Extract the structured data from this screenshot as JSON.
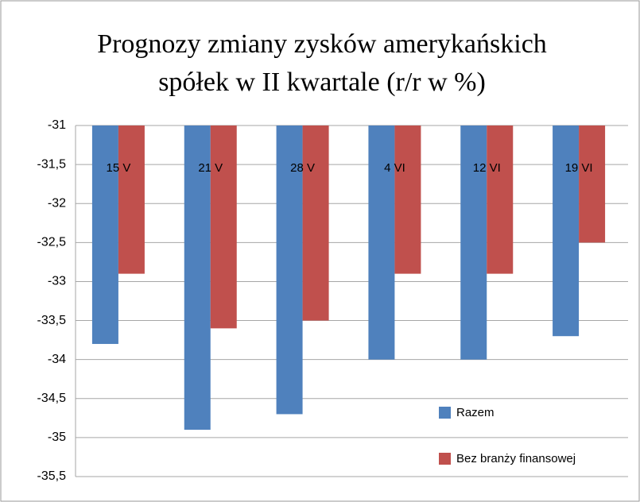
{
  "chart_data": {
    "type": "bar",
    "title": [
      "Prognozy zmiany zysków amerykańskich",
      "spółek w II kwartale (r/r w %)"
    ],
    "categories": [
      "15 V",
      "21 V",
      "28 V",
      "4 VI",
      "12 VI",
      "19 VI"
    ],
    "series": [
      {
        "name": "Razem",
        "color": "#4f81bd",
        "values": [
          -33.8,
          -34.9,
          -34.7,
          -34.0,
          -34.0,
          -33.7
        ]
      },
      {
        "name": "Bez branży finansowej",
        "color": "#c0504d",
        "values": [
          -32.9,
          -33.6,
          -33.5,
          -32.9,
          -32.9,
          -32.5
        ]
      }
    ],
    "ylim": [
      -35.5,
      -31
    ],
    "yticks": [
      {
        "value": -35.5,
        "label": "-35,5"
      },
      -35,
      {
        "value": -34.5,
        "label": "-34,5"
      },
      -34,
      {
        "value": -33.5,
        "label": "-33,5"
      },
      -33,
      {
        "value": -32.5,
        "label": "-32,5"
      },
      -32,
      {
        "value": -31.5,
        "label": "-31,5"
      },
      -31
    ],
    "grid": true,
    "legend": "bottom-right"
  }
}
